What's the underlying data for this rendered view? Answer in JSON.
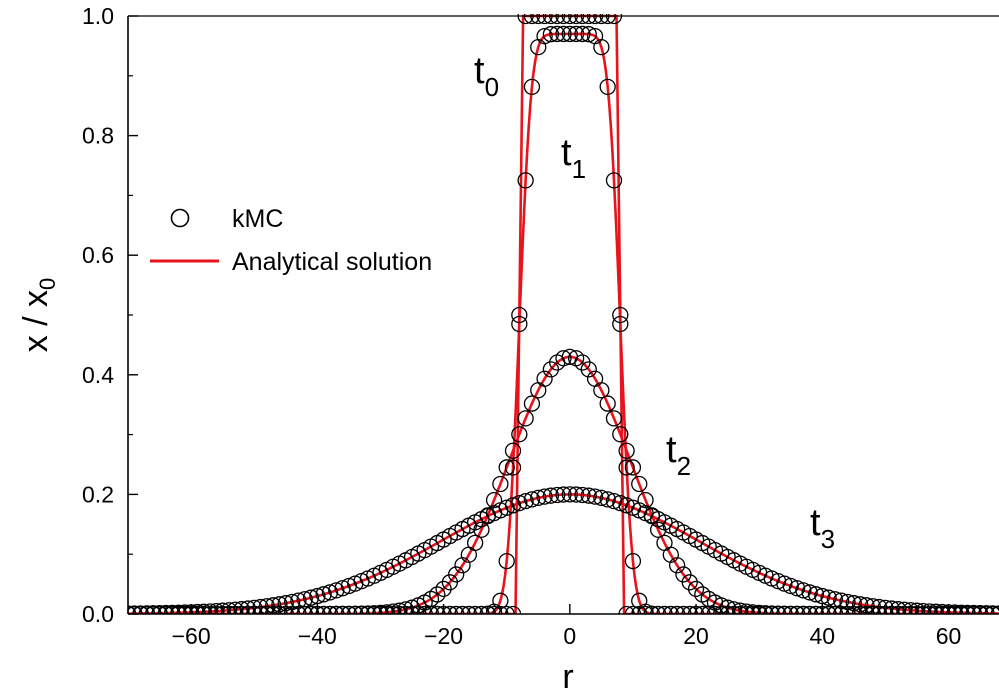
{
  "chart_data": {
    "type": "line",
    "title": "",
    "xlabel": "r",
    "ylabel": {
      "main": "x / x",
      "sub": "0"
    },
    "xlim": [
      -70,
      68
    ],
    "ylim": [
      0,
      1.0
    ],
    "xticks": [
      -60,
      -40,
      -20,
      0,
      20,
      40,
      60
    ],
    "xtick_labels": [
      "−60",
      "−40",
      "−20",
      "0",
      "20",
      "40",
      "60"
    ],
    "yticks": [
      0.0,
      0.2,
      0.4,
      0.6,
      0.8,
      1.0
    ],
    "ytick_labels": [
      "0.0",
      "0.2",
      "0.4",
      "0.6",
      "0.8",
      "1.0"
    ],
    "grid": false,
    "legend": {
      "placement": "left-middle",
      "entries": [
        {
          "label": "kMC",
          "marker": "open-circle"
        },
        {
          "label": "Analytical solution",
          "marker": "line"
        }
      ]
    },
    "series": [
      {
        "label": {
          "main": "t",
          "sub": "0"
        },
        "half_width": 8,
        "amplitude": 1.0,
        "sigma": 0
      },
      {
        "label": {
          "main": "t",
          "sub": "1"
        },
        "half_width": 8,
        "amplitude": 0.97,
        "sigma": 1.5
      },
      {
        "label": {
          "main": "t",
          "sub": "2"
        },
        "half_width": 8,
        "amplitude": 0.43,
        "sigma": 8
      },
      {
        "label": {
          "main": "t",
          "sub": "3"
        },
        "half_width": 8,
        "amplitude": 0.2,
        "sigma": 20
      }
    ],
    "colors": {
      "analytical": "#e8141b",
      "kmc": "#000000"
    }
  }
}
